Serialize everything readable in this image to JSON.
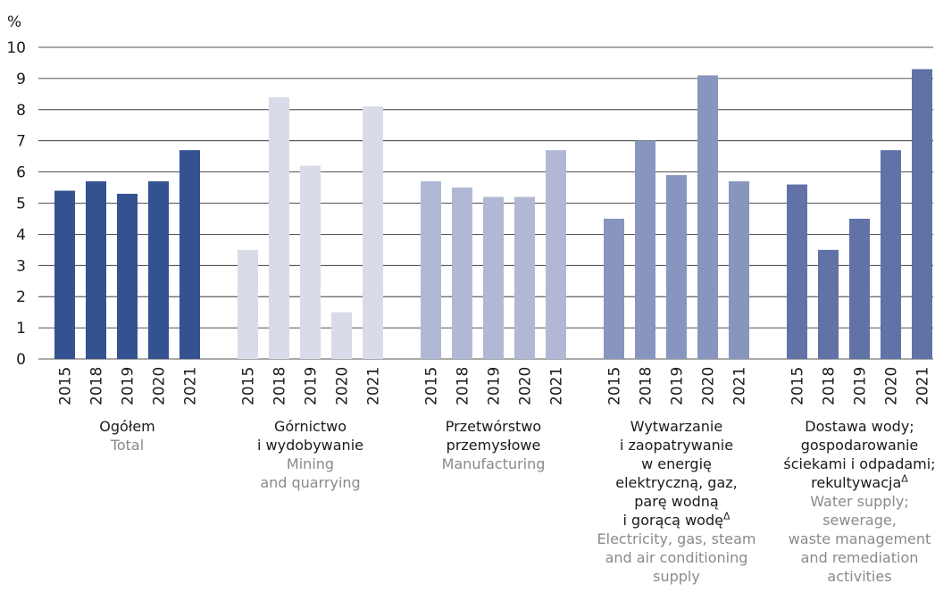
{
  "chart_data": {
    "type": "bar",
    "y_unit": "%",
    "ylim": [
      0,
      10
    ],
    "yticks": [
      "0",
      "1",
      "2",
      "3",
      "4",
      "5",
      "6",
      "7",
      "8",
      "9",
      "10"
    ],
    "grid": true,
    "groups": [
      {
        "label_pl": [
          "Ogółem"
        ],
        "label_en": [
          "Total"
        ],
        "label_pl_sup": "",
        "color": "#33528f",
        "categories": [
          "2015",
          "2018",
          "2019",
          "2020",
          "2021"
        ],
        "values": [
          5.4,
          5.7,
          5.3,
          5.7,
          6.7
        ]
      },
      {
        "label_pl": [
          "Górnictwo",
          "i wydobywanie"
        ],
        "label_en": [
          "Mining",
          "and quarrying"
        ],
        "label_pl_sup": "",
        "color": "#d9dbe8",
        "categories": [
          "2015",
          "2018",
          "2019",
          "2020",
          "2021"
        ],
        "values": [
          3.5,
          8.4,
          6.2,
          1.5,
          8.1
        ]
      },
      {
        "label_pl": [
          "Przetwórstwo",
          "przemysłowe"
        ],
        "label_en": [
          "Manufacturing"
        ],
        "label_pl_sup": "",
        "color": "#b1b8d6",
        "categories": [
          "2015",
          "2018",
          "2019",
          "2020",
          "2021"
        ],
        "values": [
          5.7,
          5.5,
          5.2,
          5.2,
          6.7
        ]
      },
      {
        "label_pl": [
          "Wytwarzanie",
          "i zaopatrywanie",
          "w energię",
          "elektryczną, gaz,",
          "parę wodną",
          "i gorącą wodę"
        ],
        "label_en": [
          "Electricity, gas, steam",
          "and air conditioning",
          "supply"
        ],
        "label_pl_sup": "Δ",
        "color": "#8895bf",
        "categories": [
          "2015",
          "2018",
          "2019",
          "2020",
          "2021"
        ],
        "values": [
          4.5,
          7.0,
          5.9,
          9.1,
          5.7
        ]
      },
      {
        "label_pl": [
          "Dostawa wody;",
          "gospodarowanie",
          "ściekami i odpadami;",
          "rekultywacja"
        ],
        "label_en": [
          "Water supply;",
          "sewerage,",
          "waste management",
          "and remediation",
          "activities"
        ],
        "label_pl_sup": "Δ",
        "color": "#6172a6",
        "categories": [
          "2015",
          "2018",
          "2019",
          "2020",
          "2021"
        ],
        "values": [
          5.6,
          3.5,
          4.5,
          6.7,
          9.3
        ]
      }
    ]
  }
}
